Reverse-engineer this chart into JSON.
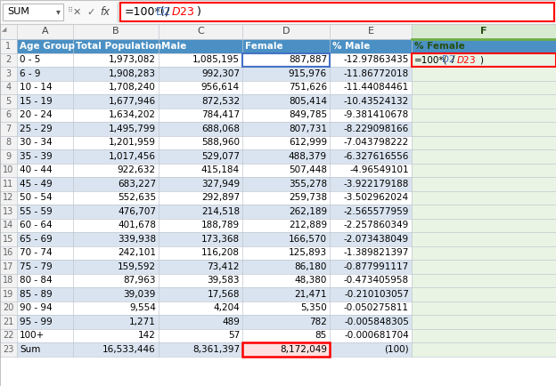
{
  "formula_bar_text": "=100*(D2/$D$23)",
  "name_box": "SUM",
  "col_letters": [
    "A",
    "B",
    "C",
    "D",
    "E",
    "F"
  ],
  "row1_labels": [
    "Age Group",
    "Total Population",
    "Male",
    "Female",
    "% Male",
    "% Female"
  ],
  "rows": [
    [
      "0 - 5",
      "1,973,082",
      "1,085,195",
      "887,887",
      "-12.97863435",
      "=100*(D2/$D$23)"
    ],
    [
      "6 - 9",
      "1,908,283",
      "992,307",
      "915,976",
      "-11.86772018",
      ""
    ],
    [
      "10 - 14",
      "1,708,240",
      "956,614",
      "751,626",
      "-11.44084461",
      ""
    ],
    [
      "15 - 19",
      "1,677,946",
      "872,532",
      "805,414",
      "-10.43524132",
      ""
    ],
    [
      "20 - 24",
      "1,634,202",
      "784,417",
      "849,785",
      "-9.381410678",
      ""
    ],
    [
      "25 - 29",
      "1,495,799",
      "688,068",
      "807,731",
      "-8.229098166",
      ""
    ],
    [
      "30 - 34",
      "1,201,959",
      "588,960",
      "612,999",
      "-7.043798222",
      ""
    ],
    [
      "35 - 39",
      "1,017,456",
      "529,077",
      "488,379",
      "-6.327616556",
      ""
    ],
    [
      "40 - 44",
      "922,632",
      "415,184",
      "507,448",
      "-4.96549101",
      ""
    ],
    [
      "45 - 49",
      "683,227",
      "327,949",
      "355,278",
      "-3.922179188",
      ""
    ],
    [
      "50 - 54",
      "552,635",
      "292,897",
      "259,738",
      "-3.502962024",
      ""
    ],
    [
      "55 - 59",
      "476,707",
      "214,518",
      "262,189",
      "-2.565577959",
      ""
    ],
    [
      "60 - 64",
      "401,678",
      "188,789",
      "212,889",
      "-2.257860349",
      ""
    ],
    [
      "65 - 69",
      "339,938",
      "173,368",
      "166,570",
      "-2.073438049",
      ""
    ],
    [
      "70 - 74",
      "242,101",
      "116,208",
      "125,893",
      "-1.389821397",
      ""
    ],
    [
      "75 - 79",
      "159,592",
      "73,412",
      "86,180",
      "-0.877991117",
      ""
    ],
    [
      "80 - 84",
      "87,963",
      "39,583",
      "48,380",
      "-0.473405958",
      ""
    ],
    [
      "85 - 89",
      "39,039",
      "17,568",
      "21,471",
      "-0.210103057",
      ""
    ],
    [
      "90 - 94",
      "9,554",
      "4,204",
      "5,350",
      "-0.050275811",
      ""
    ],
    [
      "95 - 99",
      "1,271",
      "489",
      "782",
      "-0.005848305",
      ""
    ],
    [
      "100+",
      "142",
      "57",
      "85",
      "-0.000681704",
      ""
    ]
  ],
  "sum_row": [
    "Sum",
    "16,533,446",
    "8,361,397",
    "8,172,049",
    "(100)",
    ""
  ],
  "grid_color": "#C0C8D0",
  "row_bg_odd": "#DAE4F0",
  "row_bg_even": "#FFFFFF",
  "header_row_bg": "#4A90C4",
  "header_row_fg": "#FFFFFF",
  "rownumber_bg": "#F2F2F2",
  "rownumber_fg": "#666666",
  "col_header_bg": "#F2F2F2",
  "col_header_fg": "#444444",
  "col_F_header_bg": "#D9EAD3",
  "col_F_header_fg": "#274E13",
  "col_F_data_bg": "#EAF4E4",
  "col_D_selected_border": "#4472C4",
  "col_F_selected_border": "#70AD47",
  "sum_D_border": "#FF0000",
  "sum_D_fill": "#FFE0E0",
  "formula_bar_bg": "#F8F8F8",
  "formula_border_color": "#FF0000",
  "formula_text_color": "#000000",
  "formula_D_color": "#4472C4",
  "formula_D23_color": "#FF0000",
  "fx_separator_color": "#CCCCCC"
}
